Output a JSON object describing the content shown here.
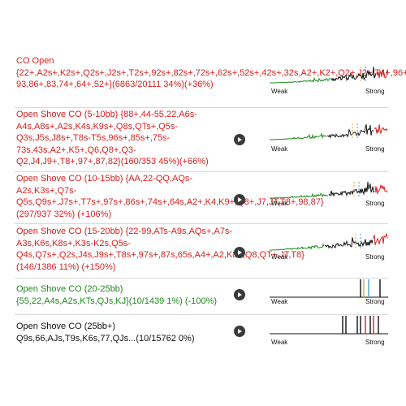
{
  "rows": [
    {
      "text": "CO Open {22+,A2s+,K2s+,Q2s+,J2s+,T2s+,92s+,82s+,72s+,62s+,52s+,42s+,32s,A2+,K2+,Q2+,J2+,T4+,96+,94-93,86+,83,74+,64+,52+}(6863/20111 34%)(+36%)",
      "color": "#d9211f",
      "has_play": false,
      "weak_label": "Weak",
      "strong_label": "Strong"
    },
    {
      "text": "Open Shove CO (5-10bb) {88+,44-55,22,A6s-A4s,A8s+,A2s,K4s,K9s+,Q8s,QTs+,Q5s-Q3s,J5s,J8s+,T8s-T5s,96s+,85s+,75s-73s,43s,A2+,K5+,Q6,Q8+,Q3-Q2,J4,J9+,T8+,97+,87,82}(160/353 45%)(+66%)",
      "color": "#d9211f",
      "has_play": true,
      "weak_label": "Weak",
      "strong_label": "Strong"
    },
    {
      "text": "Open Shove CO (10-15bb) {AA,22-QQ,AQs-A2s,K3s+,Q7s-Q5s,Q9s+,J7s+,T7s+,97s+,86s+,74s+,64s,A2+,K4,K9+,Q8+,J7,JT,T8+,98,87}(297/937 32%) (+106%)",
      "color": "#d9211f",
      "has_play": true,
      "weak_label": "Weak",
      "strong_label": "Strong"
    },
    {
      "text": "Open Shove CO (15-20bb) {22-99,ATs-A9s,AQs+,A7s-A3s,K6s,K8s+,K3s-K2s,Q5s-Q4s,Q7s+,Q2s,J4s,J9s+,T8s+,97s+,87s,65s,A4+,A2,K8+,Q8,QT+,JT,T8}(146/1386 11%) (+150%)",
      "color": "#d9211f",
      "has_play": true,
      "weak_label": "Weak",
      "strong_label": "Strong"
    },
    {
      "text": "Open Shove CO (20-25bb) {55,22,A4s,A2s,KTs,QJs,KJ}(10/1439 1%) (-100%)",
      "color": "#1f8a1f",
      "has_play": true,
      "weak_label": "Weak",
      "strong_label": "Strong"
    },
    {
      "text": "Open Shove CO (25bb+) Q9s,66,AJs,T9s,K6s,77,QJs...(10/15762 0%)",
      "color": "#111111",
      "has_play": true,
      "weak_label": "Weak",
      "strong_label": "Strong"
    }
  ],
  "sparkline_colors": {
    "weak": "#1f8a1f",
    "mid": "#111111",
    "strong": "#d9211f",
    "marker_orange": "#e8a23a",
    "marker_blue": "#4aa0d0"
  }
}
